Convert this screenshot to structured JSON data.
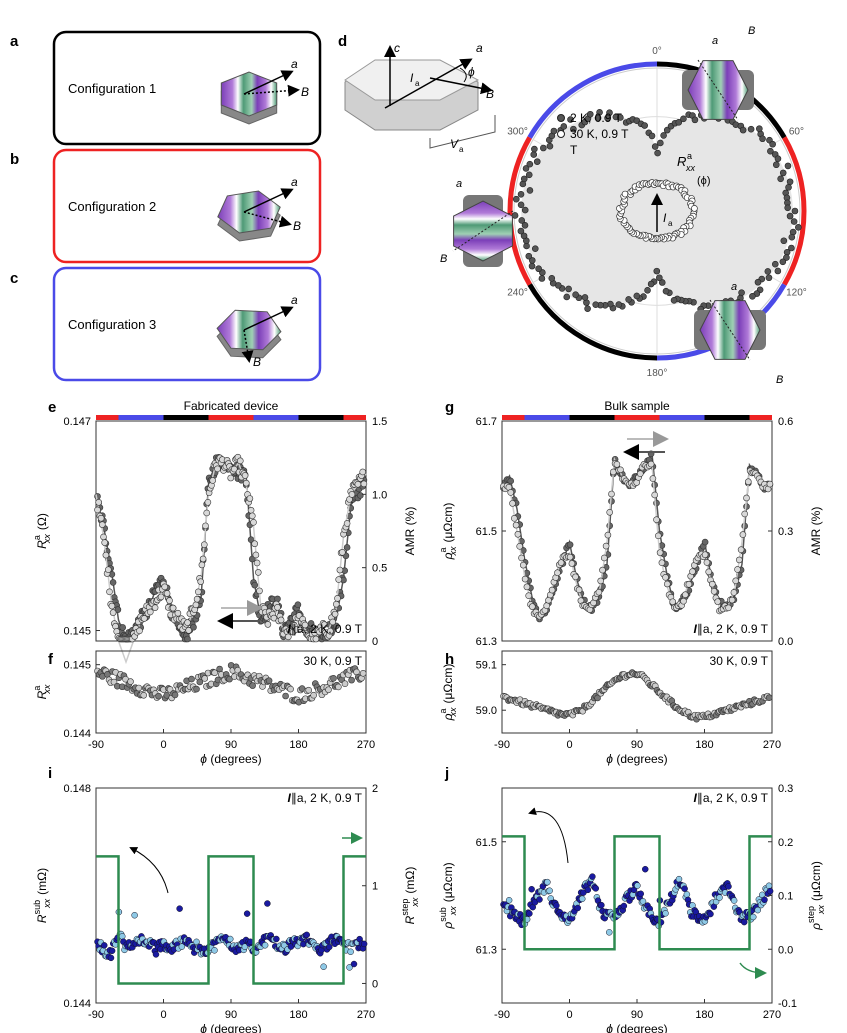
{
  "panel_labels": {
    "a": "a",
    "b": "b",
    "c": "c",
    "d": "d",
    "e": "e",
    "f": "f",
    "g": "g",
    "h": "h",
    "i": "i",
    "j": "j"
  },
  "configs": [
    {
      "label": "Configuration 1",
      "color": "#000000",
      "field": "B",
      "axis": "a"
    },
    {
      "label": "Configuration 2",
      "color": "#ee2222",
      "field": "B",
      "axis": "a"
    },
    {
      "label": "Configuration 3",
      "color": "#4a4ae8",
      "field": "B",
      "axis": "a"
    }
  ],
  "schematic": {
    "c": "c",
    "a": "a",
    "phi": "ϕ",
    "B": "B",
    "I": "I",
    "I_sub": "a",
    "V": "V",
    "V_sub": "a"
  },
  "polar": {
    "angles": [
      "0°",
      "60°",
      "120°",
      "180°",
      "240°",
      "300°"
    ],
    "legend": [
      "2 K, 0.9 T",
      "30 K, 0.9 T"
    ],
    "legend_line2": "T",
    "rlabel": "R",
    "rlabel_sup": "a",
    "rlabel_sub": "xx",
    "rlabel_arg": "(ϕ)",
    "current": "I",
    "current_sub": "a",
    "crystal_labels": {
      "a": "a",
      "B": "B"
    },
    "ring_segments": [
      {
        "from": 0,
        "to": 60,
        "color": "black"
      },
      {
        "from": 60,
        "to": 120,
        "color": "red"
      },
      {
        "from": 120,
        "to": 180,
        "color": "blue"
      },
      {
        "from": 180,
        "to": 240,
        "color": "black"
      },
      {
        "from": 240,
        "to": 300,
        "color": "red"
      },
      {
        "from": 300,
        "to": 360,
        "color": "blue"
      }
    ]
  },
  "colors": {
    "red": "#ee2222",
    "blue": "#4a4ae8",
    "black": "#000000",
    "green": "#2e8b50",
    "navy": "#1a1aa0",
    "cyan": "#8ec9e6",
    "dark": "#555555",
    "light": "#cfcfcf"
  },
  "chart_data": [
    {
      "id": "e",
      "type": "scatter",
      "title": "Fabricated device",
      "x": [
        -90,
        -80,
        -70,
        -60,
        -50,
        -40,
        -30,
        -20,
        -10,
        0,
        10,
        20,
        30,
        40,
        50,
        60,
        70,
        80,
        90,
        100,
        110,
        120,
        130,
        140,
        150,
        160,
        170,
        180,
        190,
        200,
        210,
        220,
        230,
        240,
        250,
        260,
        270
      ],
      "series": [
        {
          "name": "sweep up",
          "values": [
            0.1463,
            0.146,
            0.1456,
            0.1451,
            0.1449,
            0.145,
            0.1451,
            0.1452,
            0.1454,
            0.1455,
            0.1452,
            0.145,
            0.1449,
            0.1451,
            0.1453,
            0.1464,
            0.1466,
            0.1466,
            0.1466,
            0.1465,
            0.1465,
            0.1455,
            0.1451,
            0.1452,
            0.1453,
            0.145,
            0.1451,
            0.1452,
            0.145,
            0.145,
            0.1449,
            0.145,
            0.1451,
            0.1455,
            0.1462,
            0.1463,
            0.1465
          ]
        },
        {
          "name": "sweep down",
          "values": [
            0.1463,
            0.1459,
            0.1453,
            0.1449,
            0.1447,
            0.1449,
            0.1451,
            0.1452,
            0.1453,
            0.1454,
            0.1452,
            0.1451,
            0.145,
            0.1452,
            0.1455,
            0.1463,
            0.1466,
            0.1466,
            0.1465,
            0.1466,
            0.1464,
            0.146,
            0.1452,
            0.1451,
            0.1452,
            0.145,
            0.145,
            0.1451,
            0.145,
            0.1449,
            0.145,
            0.145,
            0.1452,
            0.1459,
            0.1463,
            0.1464,
            0.1465
          ]
        }
      ],
      "ylabel": "R",
      "ylabel_sup": "a",
      "ylabel_sub": "xx",
      "ylabel_unit": "(Ω)",
      "ylim": [
        0.1449,
        0.147
      ],
      "yticks": [
        "0.147",
        "0.145"
      ],
      "y2label": "AMR (%)",
      "y2ticks": [
        "1.5",
        "1.0",
        "0.5",
        "0"
      ],
      "annotation": "I∥a, 2 K, 0.9 T",
      "annotation_I": "I",
      "annotation_rest": "∥a, 2 K, 0.9 T",
      "xlim": [
        -90,
        270
      ],
      "bar_colors": [
        "red",
        "blue",
        "black",
        "red",
        "blue",
        "black",
        "red"
      ],
      "bar_edges": [
        -90,
        -60,
        0,
        60,
        120,
        180,
        240,
        270
      ]
    },
    {
      "id": "f",
      "type": "scatter",
      "x": [
        -90,
        -80,
        -70,
        -60,
        -50,
        -40,
        -30,
        -20,
        -10,
        0,
        10,
        20,
        30,
        40,
        50,
        60,
        70,
        80,
        90,
        100,
        110,
        120,
        130,
        140,
        150,
        160,
        170,
        180,
        190,
        200,
        210,
        220,
        230,
        240,
        250,
        260,
        270
      ],
      "values": [
        0.1449,
        0.14486,
        0.14482,
        0.14478,
        0.14474,
        0.1447,
        0.14466,
        0.14462,
        0.14458,
        0.14455,
        0.14458,
        0.14462,
        0.14466,
        0.1447,
        0.14474,
        0.14478,
        0.14482,
        0.14486,
        0.1449,
        0.14486,
        0.14482,
        0.14478,
        0.14474,
        0.1447,
        0.14466,
        0.14462,
        0.14458,
        0.14455,
        0.14458,
        0.14462,
        0.14466,
        0.1447,
        0.14474,
        0.14478,
        0.14482,
        0.14486,
        0.1449
      ],
      "ylabel": "R",
      "ylabel_sup": "a",
      "ylabel_sub": "xx",
      "ylim": [
        0.144,
        0.1452
      ],
      "yticks": [
        "0.145",
        "0.144"
      ],
      "annotation": "30 K, 0.9 T",
      "xlabel": "ϕ (degrees)",
      "xticks": [
        "-90",
        "0",
        "90",
        "180",
        "270"
      ],
      "xlim": [
        -90,
        270
      ]
    },
    {
      "id": "g",
      "type": "scatter",
      "title": "Bulk sample",
      "x": [
        -90,
        -80,
        -70,
        -60,
        -50,
        -40,
        -30,
        -20,
        -10,
        0,
        10,
        20,
        30,
        40,
        50,
        60,
        70,
        80,
        90,
        100,
        110,
        120,
        130,
        140,
        150,
        160,
        170,
        180,
        190,
        200,
        210,
        220,
        230,
        240,
        250,
        260,
        270
      ],
      "series": [
        {
          "name": "sweep up",
          "values": [
            61.58,
            61.6,
            61.54,
            61.45,
            61.38,
            61.34,
            61.36,
            61.4,
            61.44,
            61.48,
            61.41,
            61.37,
            61.36,
            61.38,
            61.44,
            61.63,
            61.6,
            61.58,
            61.6,
            61.62,
            61.64,
            61.5,
            61.42,
            61.36,
            61.37,
            61.4,
            61.44,
            61.48,
            61.41,
            61.37,
            61.36,
            61.38,
            61.44,
            61.62,
            61.6,
            61.58,
            61.58
          ]
        },
        {
          "name": "sweep down",
          "values": [
            61.58,
            61.58,
            61.5,
            61.42,
            61.36,
            61.34,
            61.37,
            61.41,
            61.45,
            61.46,
            61.4,
            61.36,
            61.36,
            61.39,
            61.48,
            61.63,
            61.6,
            61.58,
            61.59,
            61.62,
            61.62,
            61.46,
            61.4,
            61.36,
            61.37,
            61.41,
            61.45,
            61.46,
            61.4,
            61.36,
            61.36,
            61.39,
            61.48,
            61.61,
            61.6,
            61.58,
            61.58
          ]
        }
      ],
      "ylabel": "ρ",
      "ylabel_sup": "a",
      "ylabel_sub": "xx",
      "ylabel_unit": "(μΩcm)",
      "ylim": [
        61.3,
        61.7
      ],
      "yticks": [
        "61.7",
        "61.5",
        "61.3"
      ],
      "y2label": "AMR (%)",
      "y2ticks": [
        "0.6",
        "0.3",
        "0.0"
      ],
      "annotation_I": "I",
      "annotation_rest": "∥a, 2 K, 0.9 T",
      "xlim": [
        -90,
        270
      ],
      "bar_colors": [
        "red",
        "blue",
        "black",
        "red",
        "blue",
        "black",
        "red"
      ],
      "bar_edges": [
        -90,
        -60,
        0,
        60,
        120,
        180,
        240,
        270
      ]
    },
    {
      "id": "h",
      "type": "scatter",
      "x": [
        -90,
        -80,
        -70,
        -60,
        -50,
        -40,
        -30,
        -20,
        -10,
        0,
        10,
        20,
        30,
        40,
        50,
        60,
        70,
        80,
        90,
        100,
        110,
        120,
        130,
        140,
        150,
        160,
        170,
        180,
        190,
        200,
        210,
        220,
        230,
        240,
        250,
        260,
        270
      ],
      "values": [
        59.03,
        59.025,
        59.02,
        59.015,
        59.01,
        59.005,
        59.0,
        58.995,
        58.99,
        58.99,
        58.995,
        59.005,
        59.02,
        59.035,
        59.05,
        59.065,
        59.075,
        59.08,
        59.08,
        59.07,
        59.055,
        59.04,
        59.025,
        59.01,
        59.0,
        58.99,
        58.985,
        58.985,
        58.99,
        58.995,
        59.0,
        59.005,
        59.01,
        59.015,
        59.02,
        59.025,
        59.03
      ],
      "ylabel": "ρ",
      "ylabel_sup": "a",
      "ylabel_sub": "xx",
      "ylabel_unit": "(μΩcm)",
      "ylim": [
        58.95,
        59.13
      ],
      "yticks": [
        "59.1",
        "59.0"
      ],
      "annotation": "30 K, 0.9 T",
      "xlabel": "ϕ (degrees)",
      "xticks": [
        "-90",
        "0",
        "90",
        "180",
        "270"
      ],
      "xlim": [
        -90,
        270
      ]
    },
    {
      "id": "i",
      "type": "scatter",
      "x": [
        -90,
        -80,
        -70,
        -60,
        -50,
        -40,
        -30,
        -20,
        -10,
        0,
        10,
        20,
        30,
        40,
        50,
        60,
        70,
        80,
        90,
        100,
        110,
        120,
        130,
        140,
        150,
        160,
        170,
        180,
        190,
        200,
        210,
        220,
        230,
        240,
        250,
        260,
        270
      ],
      "values": [
        0.1451,
        0.145,
        0.1449,
        0.1453,
        0.145,
        0.1451,
        0.1452,
        0.1451,
        0.145,
        0.1451,
        0.145,
        0.1451,
        0.1452,
        0.1451,
        0.145,
        0.145,
        0.1451,
        0.1452,
        0.1451,
        0.145,
        0.1451,
        0.145,
        0.1451,
        0.1452,
        0.1451,
        0.145,
        0.1451,
        0.1451,
        0.1452,
        0.1451,
        0.145,
        0.1451,
        0.1452,
        0.1451,
        0.145,
        0.1451,
        0.1451
      ],
      "step_edges": [
        -90,
        -60,
        60,
        120,
        240,
        270
      ],
      "step_values": [
        1.3,
        0,
        1.3,
        0,
        1.3
      ],
      "ylabel": "R",
      "ylabel_sup": "sub",
      "ylabel_sub": "xx",
      "ylabel_unit": "(mΩ)",
      "ylim": [
        0.144,
        0.148
      ],
      "yticks": [
        "0.148",
        "0.144"
      ],
      "y2label": "R",
      "y2label_sup": "step",
      "y2label_sub": "xx",
      "y2label_unit": "(mΩ)",
      "y2lim": [
        -0.2,
        2
      ],
      "y2ticks": [
        "2",
        "1",
        "0"
      ],
      "annotation_I": "I",
      "annotation_rest": "∥a, 2 K, 0.9 T",
      "xlabel": "ϕ (degrees)",
      "xticks": [
        "-90",
        "0",
        "90",
        "180",
        "270"
      ],
      "xlim": [
        -90,
        270
      ]
    },
    {
      "id": "j",
      "type": "scatter",
      "x": [
        -90,
        -80,
        -70,
        -60,
        -50,
        -40,
        -30,
        -20,
        -10,
        0,
        10,
        20,
        30,
        40,
        50,
        60,
        70,
        80,
        90,
        100,
        110,
        120,
        130,
        140,
        150,
        160,
        170,
        180,
        190,
        200,
        210,
        220,
        230,
        240,
        250,
        260,
        270
      ],
      "values": [
        61.38,
        61.37,
        61.36,
        61.35,
        61.38,
        61.4,
        61.42,
        61.38,
        61.36,
        61.35,
        61.38,
        61.41,
        61.43,
        61.38,
        61.36,
        61.36,
        61.38,
        61.4,
        61.42,
        61.38,
        61.36,
        61.35,
        61.38,
        61.41,
        61.43,
        61.38,
        61.36,
        61.35,
        61.38,
        61.4,
        61.42,
        61.38,
        61.36,
        61.36,
        61.38,
        61.4,
        61.42
      ],
      "step_edges": [
        -90,
        -60,
        60,
        120,
        240,
        270
      ],
      "step_values": [
        0.21,
        0,
        0.21,
        0,
        0.21
      ],
      "ylabel": "ρ",
      "ylabel_sup": "sub",
      "ylabel_sub": "xx",
      "ylabel_unit": "(μΩcm)",
      "ylim": [
        61.2,
        61.6
      ],
      "yticks": [
        "61.5",
        "61.3"
      ],
      "y2label": "ρ",
      "y2label_sup": "step",
      "y2label_sub": "xx",
      "y2label_unit": "(μΩcm)",
      "y2lim": [
        -0.1,
        0.3
      ],
      "y2ticks": [
        "0.3",
        "0.2",
        "0.1",
        "0.0",
        "-0.1"
      ],
      "annotation_I": "I",
      "annotation_rest": "∥a, 2 K, 0.9 T",
      "xlabel": "ϕ (degrees)",
      "xticks": [
        "-90",
        "0",
        "90",
        "180",
        "270"
      ],
      "xlim": [
        -90,
        270
      ]
    }
  ]
}
